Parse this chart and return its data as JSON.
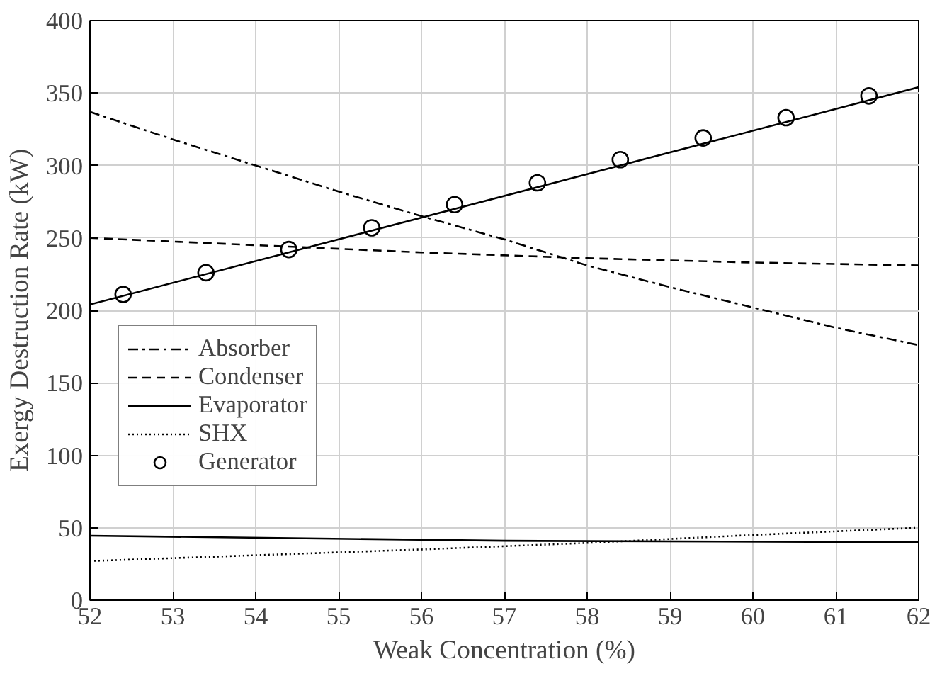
{
  "chart_data": {
    "type": "line",
    "xlabel": "Weak Concentration (%)",
    "ylabel": "Exergy Destruction Rate (kW)",
    "xlim": [
      52,
      62
    ],
    "xticks": [
      52,
      53,
      54,
      55,
      56,
      57,
      58,
      59,
      60,
      61,
      62
    ],
    "ylim": [
      0,
      400
    ],
    "yticks": [
      0,
      50,
      100,
      150,
      200,
      250,
      300,
      350,
      400
    ],
    "grid": true,
    "legend": "bottom left",
    "marker": "none",
    "series": [
      {
        "name": "Absorber",
        "color": "#000000",
        "line_style": "dashdot",
        "x": [
          52,
          53,
          54,
          55,
          56,
          57,
          58,
          59,
          60,
          61,
          62
        ],
        "values": [
          337,
          318,
          300,
          282,
          265,
          249,
          231,
          216,
          202,
          188,
          176
        ]
      },
      {
        "name": "Condenser",
        "color": "#000000",
        "line_style": "dashed",
        "x": [
          52,
          54,
          56,
          58,
          60,
          62
        ],
        "values": [
          250,
          245,
          240,
          236,
          233,
          231
        ]
      },
      {
        "name": "Evaporator",
        "color": "#000000",
        "line_style": "solid",
        "x": [
          52,
          57,
          62
        ],
        "values": [
          44.5,
          41,
          40
        ]
      },
      {
        "name": "SHX",
        "color": "#000000",
        "line_style": "dotted",
        "x": [
          52,
          54,
          56,
          58,
          60,
          62
        ],
        "values": [
          27,
          31,
          35,
          39.5,
          45,
          50
        ]
      },
      {
        "color": "#000000",
        "line_style": "solid",
        "x": [
          52,
          62
        ],
        "values": [
          204,
          354
        ]
      },
      {
        "name": "Generator",
        "type": "scatter",
        "marker": "circle",
        "color": "#000000",
        "x": [
          52.4,
          53.4,
          54.4,
          55.4,
          56.4,
          57.4,
          58.4,
          59.4,
          60.4,
          61.4
        ],
        "values": [
          211,
          226,
          242,
          257,
          273,
          288,
          304,
          319,
          333,
          348
        ]
      }
    ]
  }
}
